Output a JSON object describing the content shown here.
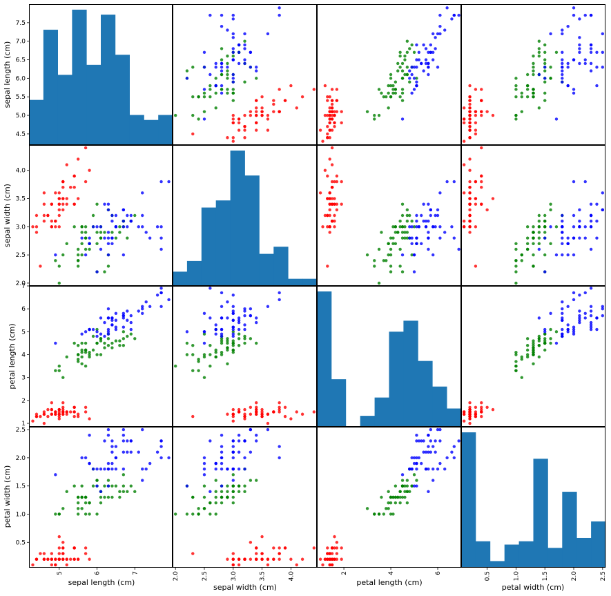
{
  "chart_data": {
    "type": "scatter-matrix",
    "variables": [
      "sepal length (cm)",
      "sepal width (cm)",
      "petal length (cm)",
      "petal width (cm)"
    ],
    "series_colors": {
      "setosa": "#ff0000",
      "versicolor": "#008000",
      "virginica": "#0000ff"
    },
    "histogram_color": "#1f77b4",
    "axes": {
      "sepal length (cm)": {
        "range": [
          4.2,
          8.0
        ],
        "ticks_left": [
          "4.5",
          "5.0",
          "5.5",
          "6.0",
          "6.5",
          "7.0",
          "7.5"
        ],
        "ticks_bottom": [
          "5",
          "6",
          "7"
        ]
      },
      "sepal width (cm)": {
        "range": [
          1.95,
          4.45
        ],
        "ticks_left": [
          "2.0",
          "2.5",
          "3.0",
          "3.5",
          "4.0"
        ],
        "ticks_bottom": [
          "2.0",
          "2.5",
          "3.0",
          "3.5",
          "4.0"
        ]
      },
      "petal length (cm)": {
        "range": [
          0.85,
          7.0
        ],
        "ticks_left": [
          "1",
          "2",
          "3",
          "4",
          "5",
          "6",
          "7"
        ],
        "ticks_bottom": [
          "2",
          "4",
          "6"
        ]
      },
      "petal width (cm)": {
        "range": [
          0.05,
          2.55
        ],
        "ticks_left": [
          "0.5",
          "1.0",
          "1.5",
          "2.0",
          "2.5"
        ],
        "ticks_bottom": [
          "0.5",
          "1.0",
          "1.5",
          "2.0",
          "2.5"
        ]
      }
    },
    "histograms": {
      "sepal length (cm)": [
        9,
        23,
        14,
        27,
        16,
        26,
        18,
        6,
        5,
        6
      ],
      "sepal width (cm)": [
        4,
        7,
        22,
        24,
        38,
        31,
        9,
        11,
        2,
        2
      ],
      "petal length (cm)": [
        37,
        13,
        0,
        3,
        8,
        26,
        29,
        18,
        11,
        5
      ],
      "petal width (cm)": [
        41,
        8,
        2,
        7,
        8,
        33,
        6,
        23,
        9,
        14
      ]
    },
    "points": {
      "setosa": [
        [
          5.1,
          3.5,
          1.4,
          0.2
        ],
        [
          4.9,
          3.0,
          1.4,
          0.2
        ],
        [
          4.7,
          3.2,
          1.3,
          0.2
        ],
        [
          4.6,
          3.1,
          1.5,
          0.2
        ],
        [
          5.0,
          3.6,
          1.4,
          0.2
        ],
        [
          5.4,
          3.9,
          1.7,
          0.4
        ],
        [
          4.6,
          3.4,
          1.4,
          0.3
        ],
        [
          5.0,
          3.4,
          1.5,
          0.2
        ],
        [
          4.4,
          2.9,
          1.4,
          0.2
        ],
        [
          4.9,
          3.1,
          1.5,
          0.1
        ],
        [
          5.4,
          3.7,
          1.5,
          0.2
        ],
        [
          4.8,
          3.4,
          1.6,
          0.2
        ],
        [
          4.8,
          3.0,
          1.4,
          0.1
        ],
        [
          4.3,
          3.0,
          1.1,
          0.1
        ],
        [
          5.8,
          4.0,
          1.2,
          0.2
        ],
        [
          5.7,
          4.4,
          1.5,
          0.4
        ],
        [
          5.4,
          3.9,
          1.3,
          0.4
        ],
        [
          5.1,
          3.5,
          1.4,
          0.3
        ],
        [
          5.7,
          3.8,
          1.7,
          0.3
        ],
        [
          5.1,
          3.8,
          1.5,
          0.3
        ],
        [
          5.4,
          3.4,
          1.7,
          0.2
        ],
        [
          5.1,
          3.7,
          1.5,
          0.4
        ],
        [
          4.6,
          3.6,
          1.0,
          0.2
        ],
        [
          5.1,
          3.3,
          1.7,
          0.5
        ],
        [
          4.8,
          3.4,
          1.9,
          0.2
        ],
        [
          5.0,
          3.0,
          1.6,
          0.2
        ],
        [
          5.0,
          3.4,
          1.6,
          0.4
        ],
        [
          5.2,
          3.5,
          1.5,
          0.2
        ],
        [
          5.2,
          3.4,
          1.4,
          0.2
        ],
        [
          4.7,
          3.2,
          1.6,
          0.2
        ],
        [
          4.8,
          3.1,
          1.6,
          0.2
        ],
        [
          5.4,
          3.4,
          1.5,
          0.4
        ],
        [
          5.2,
          4.1,
          1.5,
          0.1
        ],
        [
          5.5,
          4.2,
          1.4,
          0.2
        ],
        [
          4.9,
          3.1,
          1.5,
          0.2
        ],
        [
          5.0,
          3.2,
          1.2,
          0.2
        ],
        [
          5.5,
          3.5,
          1.3,
          0.2
        ],
        [
          4.9,
          3.6,
          1.4,
          0.1
        ],
        [
          4.4,
          3.0,
          1.3,
          0.2
        ],
        [
          5.1,
          3.4,
          1.5,
          0.2
        ],
        [
          5.0,
          3.5,
          1.3,
          0.3
        ],
        [
          4.5,
          2.3,
          1.3,
          0.3
        ],
        [
          4.4,
          3.2,
          1.3,
          0.2
        ],
        [
          5.0,
          3.5,
          1.6,
          0.6
        ],
        [
          5.1,
          3.8,
          1.9,
          0.4
        ],
        [
          4.8,
          3.0,
          1.4,
          0.3
        ],
        [
          5.1,
          3.8,
          1.6,
          0.2
        ],
        [
          4.6,
          3.2,
          1.4,
          0.2
        ],
        [
          5.3,
          3.7,
          1.5,
          0.2
        ],
        [
          5.0,
          3.3,
          1.4,
          0.2
        ]
      ],
      "versicolor": [
        [
          7.0,
          3.2,
          4.7,
          1.4
        ],
        [
          6.4,
          3.2,
          4.5,
          1.5
        ],
        [
          6.9,
          3.1,
          4.9,
          1.5
        ],
        [
          5.5,
          2.3,
          4.0,
          1.3
        ],
        [
          6.5,
          2.8,
          4.6,
          1.5
        ],
        [
          5.7,
          2.8,
          4.5,
          1.3
        ],
        [
          6.3,
          3.3,
          4.7,
          1.6
        ],
        [
          4.9,
          2.4,
          3.3,
          1.0
        ],
        [
          6.6,
          2.9,
          4.6,
          1.3
        ],
        [
          5.2,
          2.7,
          3.9,
          1.4
        ],
        [
          5.0,
          2.0,
          3.5,
          1.0
        ],
        [
          5.9,
          3.0,
          4.2,
          1.5
        ],
        [
          6.0,
          2.2,
          4.0,
          1.0
        ],
        [
          6.1,
          2.9,
          4.7,
          1.4
        ],
        [
          5.6,
          2.9,
          3.6,
          1.3
        ],
        [
          6.7,
          3.1,
          4.4,
          1.4
        ],
        [
          5.6,
          3.0,
          4.5,
          1.5
        ],
        [
          5.8,
          2.7,
          4.1,
          1.0
        ],
        [
          6.2,
          2.2,
          4.5,
          1.5
        ],
        [
          5.6,
          2.5,
          3.9,
          1.1
        ],
        [
          5.9,
          3.2,
          4.8,
          1.8
        ],
        [
          6.1,
          2.8,
          4.0,
          1.3
        ],
        [
          6.3,
          2.5,
          4.9,
          1.5
        ],
        [
          6.1,
          2.8,
          4.7,
          1.2
        ],
        [
          6.4,
          2.9,
          4.3,
          1.3
        ],
        [
          6.6,
          3.0,
          4.4,
          1.4
        ],
        [
          6.8,
          2.8,
          4.8,
          1.4
        ],
        [
          6.7,
          3.0,
          5.0,
          1.7
        ],
        [
          6.0,
          2.9,
          4.5,
          1.5
        ],
        [
          5.7,
          2.6,
          3.5,
          1.0
        ],
        [
          5.5,
          2.4,
          3.8,
          1.1
        ],
        [
          5.5,
          2.4,
          3.7,
          1.0
        ],
        [
          5.8,
          2.7,
          3.9,
          1.2
        ],
        [
          6.0,
          2.7,
          5.1,
          1.6
        ],
        [
          5.4,
          3.0,
          4.5,
          1.5
        ],
        [
          6.0,
          3.4,
          4.5,
          1.6
        ],
        [
          6.7,
          3.1,
          4.7,
          1.5
        ],
        [
          6.3,
          2.3,
          4.4,
          1.3
        ],
        [
          5.6,
          3.0,
          4.1,
          1.3
        ],
        [
          5.5,
          2.5,
          4.0,
          1.3
        ],
        [
          5.5,
          2.6,
          4.4,
          1.2
        ],
        [
          6.1,
          3.0,
          4.6,
          1.4
        ],
        [
          5.8,
          2.6,
          4.0,
          1.2
        ],
        [
          5.0,
          2.3,
          3.3,
          1.0
        ],
        [
          5.6,
          2.7,
          4.2,
          1.3
        ],
        [
          5.7,
          3.0,
          4.2,
          1.2
        ],
        [
          5.7,
          2.9,
          4.2,
          1.3
        ],
        [
          6.2,
          2.9,
          4.3,
          1.3
        ],
        [
          5.1,
          2.5,
          3.0,
          1.1
        ],
        [
          5.7,
          2.8,
          4.1,
          1.3
        ]
      ],
      "virginica": [
        [
          6.3,
          3.3,
          6.0,
          2.5
        ],
        [
          5.8,
          2.7,
          5.1,
          1.9
        ],
        [
          7.1,
          3.0,
          5.9,
          2.1
        ],
        [
          6.3,
          2.9,
          5.6,
          1.8
        ],
        [
          6.5,
          3.0,
          5.8,
          2.2
        ],
        [
          7.6,
          3.0,
          6.6,
          2.1
        ],
        [
          4.9,
          2.5,
          4.5,
          1.7
        ],
        [
          7.3,
          2.9,
          6.3,
          1.8
        ],
        [
          6.7,
          2.5,
          5.8,
          1.8
        ],
        [
          7.2,
          3.6,
          6.1,
          2.5
        ],
        [
          6.5,
          3.2,
          5.1,
          2.0
        ],
        [
          6.4,
          2.7,
          5.3,
          1.9
        ],
        [
          6.8,
          3.0,
          5.5,
          2.1
        ],
        [
          5.7,
          2.5,
          5.0,
          2.0
        ],
        [
          5.8,
          2.8,
          5.1,
          2.4
        ],
        [
          6.4,
          3.2,
          5.3,
          2.3
        ],
        [
          6.5,
          3.0,
          5.5,
          1.8
        ],
        [
          7.7,
          3.8,
          6.7,
          2.2
        ],
        [
          7.7,
          2.6,
          6.9,
          2.3
        ],
        [
          6.0,
          2.2,
          5.0,
          1.5
        ],
        [
          6.9,
          3.2,
          5.7,
          2.3
        ],
        [
          5.6,
          2.8,
          4.9,
          2.0
        ],
        [
          7.7,
          2.8,
          6.7,
          2.0
        ],
        [
          6.3,
          2.7,
          4.9,
          1.8
        ],
        [
          6.7,
          3.3,
          5.7,
          2.1
        ],
        [
          7.2,
          3.2,
          6.0,
          1.8
        ],
        [
          6.2,
          2.8,
          4.8,
          1.8
        ],
        [
          6.1,
          3.0,
          4.9,
          1.8
        ],
        [
          6.4,
          2.8,
          5.6,
          2.1
        ],
        [
          7.2,
          3.0,
          5.8,
          1.6
        ],
        [
          7.4,
          2.8,
          6.1,
          1.9
        ],
        [
          7.9,
          3.8,
          6.4,
          2.0
        ],
        [
          6.4,
          2.8,
          5.6,
          2.2
        ],
        [
          6.3,
          2.8,
          5.1,
          1.5
        ],
        [
          6.1,
          2.6,
          5.6,
          1.4
        ],
        [
          7.7,
          3.0,
          6.1,
          2.3
        ],
        [
          6.3,
          3.4,
          5.6,
          2.4
        ],
        [
          6.4,
          3.1,
          5.5,
          1.8
        ],
        [
          6.0,
          3.0,
          4.8,
          1.8
        ],
        [
          6.9,
          3.1,
          5.4,
          2.1
        ],
        [
          6.7,
          3.1,
          5.6,
          2.4
        ],
        [
          6.9,
          3.1,
          5.1,
          2.3
        ],
        [
          5.8,
          2.7,
          5.1,
          1.9
        ],
        [
          6.8,
          3.2,
          5.9,
          2.3
        ],
        [
          6.7,
          3.3,
          5.7,
          2.5
        ],
        [
          6.7,
          3.0,
          5.2,
          2.3
        ],
        [
          6.3,
          2.5,
          5.0,
          1.9
        ],
        [
          6.5,
          3.0,
          5.2,
          2.0
        ],
        [
          6.2,
          3.4,
          5.4,
          2.3
        ],
        [
          5.9,
          3.0,
          5.1,
          1.8
        ]
      ]
    }
  }
}
